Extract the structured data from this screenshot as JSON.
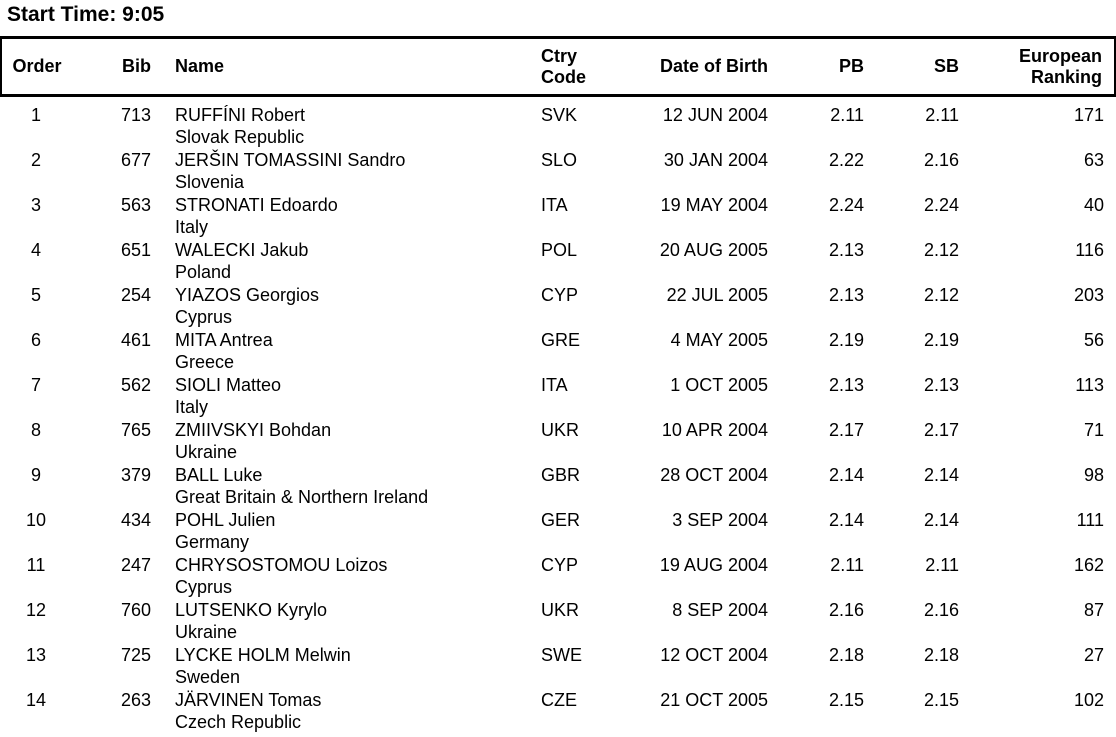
{
  "page": {
    "start_time_label": "Start Time: 9:05"
  },
  "table": {
    "headers": {
      "order": "Order",
      "bib": "Bib",
      "name": "Name",
      "ctry_line1": "Ctry",
      "ctry_line2": "Code",
      "dob": "Date of Birth",
      "pb": "PB",
      "sb": "SB",
      "ranking_line1": "European",
      "ranking_line2": "Ranking"
    },
    "rows": [
      {
        "order": "1",
        "bib": "713",
        "name": "RUFFÍNI Robert",
        "country": "Slovak Republic",
        "ctry_code": "SVK",
        "dob": "12 JUN 2004",
        "pb": "2.11",
        "sb": "2.11",
        "ranking": "171"
      },
      {
        "order": "2",
        "bib": "677",
        "name": "JERŠIN TOMASSINI Sandro",
        "country": "Slovenia",
        "ctry_code": "SLO",
        "dob": "30 JAN 2004",
        "pb": "2.22",
        "sb": "2.16",
        "ranking": "63"
      },
      {
        "order": "3",
        "bib": "563",
        "name": "STRONATI Edoardo",
        "country": "Italy",
        "ctry_code": "ITA",
        "dob": "19 MAY 2004",
        "pb": "2.24",
        "sb": "2.24",
        "ranking": "40"
      },
      {
        "order": "4",
        "bib": "651",
        "name": "WALECKI Jakub",
        "country": "Poland",
        "ctry_code": "POL",
        "dob": "20 AUG 2005",
        "pb": "2.13",
        "sb": "2.12",
        "ranking": "116"
      },
      {
        "order": "5",
        "bib": "254",
        "name": "YIAZOS Georgios",
        "country": "Cyprus",
        "ctry_code": "CYP",
        "dob": "22 JUL 2005",
        "pb": "2.13",
        "sb": "2.12",
        "ranking": "203"
      },
      {
        "order": "6",
        "bib": "461",
        "name": "MITA Antrea",
        "country": "Greece",
        "ctry_code": "GRE",
        "dob": "4 MAY 2005",
        "pb": "2.19",
        "sb": "2.19",
        "ranking": "56"
      },
      {
        "order": "7",
        "bib": "562",
        "name": "SIOLI Matteo",
        "country": "Italy",
        "ctry_code": "ITA",
        "dob": "1 OCT 2005",
        "pb": "2.13",
        "sb": "2.13",
        "ranking": "113"
      },
      {
        "order": "8",
        "bib": "765",
        "name": "ZMIIVSKYI Bohdan",
        "country": "Ukraine",
        "ctry_code": "UKR",
        "dob": "10 APR 2004",
        "pb": "2.17",
        "sb": "2.17",
        "ranking": "71"
      },
      {
        "order": "9",
        "bib": "379",
        "name": "BALL Luke",
        "country": "Great Britain & Northern Ireland",
        "ctry_code": "GBR",
        "dob": "28 OCT 2004",
        "pb": "2.14",
        "sb": "2.14",
        "ranking": "98"
      },
      {
        "order": "10",
        "bib": "434",
        "name": "POHL Julien",
        "country": "Germany",
        "ctry_code": "GER",
        "dob": "3 SEP 2004",
        "pb": "2.14",
        "sb": "2.14",
        "ranking": "111"
      },
      {
        "order": "11",
        "bib": "247",
        "name": "CHRYSOSTOMOU Loizos",
        "country": "Cyprus",
        "ctry_code": "CYP",
        "dob": "19 AUG 2004",
        "pb": "2.11",
        "sb": "2.11",
        "ranking": "162"
      },
      {
        "order": "12",
        "bib": "760",
        "name": "LUTSENKO Kyrylo",
        "country": "Ukraine",
        "ctry_code": "UKR",
        "dob": "8 SEP 2004",
        "pb": "2.16",
        "sb": "2.16",
        "ranking": "87"
      },
      {
        "order": "13",
        "bib": "725",
        "name": "LYCKE HOLM Melwin",
        "country": "Sweden",
        "ctry_code": "SWE",
        "dob": "12 OCT 2004",
        "pb": "2.18",
        "sb": "2.18",
        "ranking": "27"
      },
      {
        "order": "14",
        "bib": "263",
        "name": "JÄRVINEN Tomas",
        "country": "Czech Republic",
        "ctry_code": "CZE",
        "dob": "21 OCT 2005",
        "pb": "2.15",
        "sb": "2.15",
        "ranking": "102"
      }
    ]
  },
  "colors": {
    "text": "#000000",
    "background": "#ffffff",
    "border": "#000000"
  }
}
